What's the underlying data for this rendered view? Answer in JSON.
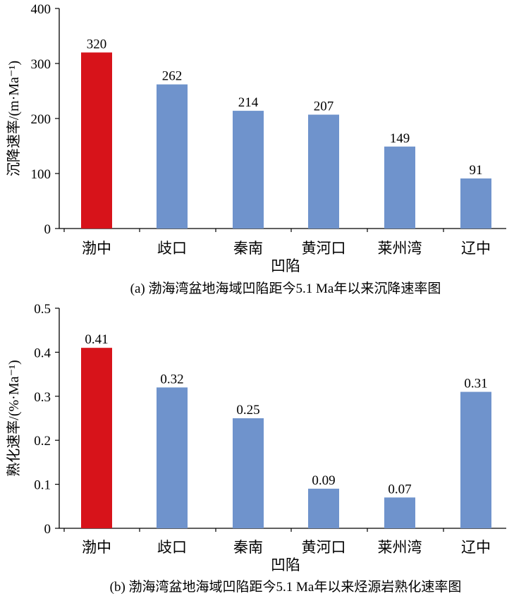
{
  "colors": {
    "highlight": "#d7131a",
    "bar": "#6f93cc",
    "axis": "#000000"
  },
  "chart_data": [
    {
      "type": "bar",
      "categories": [
        "渤中",
        "歧口",
        "秦南",
        "黄河口",
        "莱州湾",
        "辽中"
      ],
      "values": [
        320,
        262,
        214,
        207,
        149,
        91
      ],
      "value_labels": [
        "320",
        "262",
        "214",
        "207",
        "149",
        "91"
      ],
      "highlight_index": 0,
      "ylim": [
        0,
        400
      ],
      "yticks": [
        "0",
        "100",
        "200",
        "300",
        "400"
      ],
      "ytick_values": [
        0,
        100,
        200,
        300,
        400
      ],
      "ylabel": "沉降速率/(m·Ma⁻¹)",
      "xlabel": "凹陷",
      "caption": "(a) 渤海湾盆地海域凹陷距今5.1 Ma年以来沉降速率图",
      "grid": false,
      "legend": "none"
    },
    {
      "type": "bar",
      "categories": [
        "渤中",
        "歧口",
        "秦南",
        "黄河口",
        "莱州湾",
        "辽中"
      ],
      "values": [
        0.41,
        0.32,
        0.25,
        0.09,
        0.07,
        0.31
      ],
      "value_labels": [
        "0.41",
        "0.32",
        "0.25",
        "0.09",
        "0.07",
        "0.31"
      ],
      "highlight_index": 0,
      "ylim": [
        0,
        0.5
      ],
      "yticks": [
        "0",
        "0.1",
        "0.2",
        "0.3",
        "0.4",
        "0.5"
      ],
      "ytick_values": [
        0,
        0.1,
        0.2,
        0.3,
        0.4,
        0.5
      ],
      "ylabel": "熟化速率/(%·Ma⁻¹)",
      "xlabel": "凹陷",
      "caption": "(b) 渤海湾盆地海域凹陷距今5.1 Ma年以来烃源岩熟化速率图",
      "grid": false,
      "legend": "none"
    }
  ]
}
